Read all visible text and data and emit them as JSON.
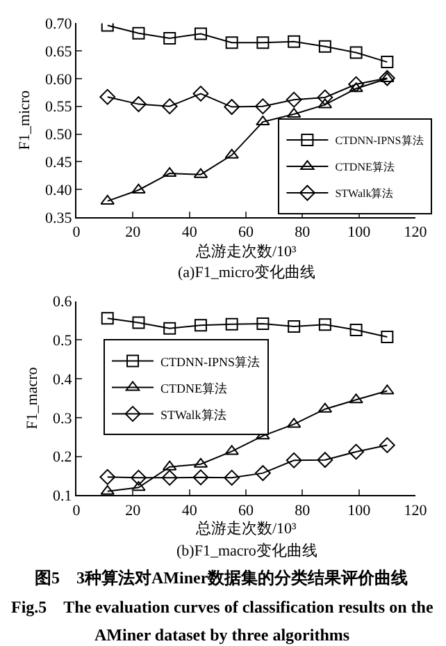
{
  "chart_data": [
    {
      "type": "line",
      "xlabel": "总游走次数/10³",
      "ylabel": "F1_micro",
      "x": [
        11,
        22,
        33,
        44,
        55,
        66,
        77,
        88,
        99,
        110
      ],
      "xlim": [
        0,
        120
      ],
      "xticks": [
        0,
        20,
        40,
        60,
        80,
        100,
        120
      ],
      "ylim": [
        0.35,
        0.7
      ],
      "yticks": [
        0.35,
        {
          "value": 0.4,
          "label": "0.40"
        },
        0.45,
        {
          "value": 0.5,
          "label": "0.50"
        },
        0.55,
        {
          "value": 0.6,
          "label": "0.60"
        },
        0.65,
        {
          "value": 0.7,
          "label": "0.70"
        }
      ],
      "legend": "bottom right",
      "line_style": "solid",
      "annotations": [
        "(a)F1_micro变化曲线"
      ],
      "series": [
        {
          "name": "CTDNN-IPNS算法",
          "color": "#000000",
          "marker": "square",
          "values": [
            0.696,
            0.682,
            0.673,
            0.681,
            0.665,
            0.665,
            0.667,
            0.658,
            0.647,
            0.63
          ]
        },
        {
          "name": "CTDNE算法",
          "color": "#000000",
          "marker": "triangle",
          "values": [
            0.379,
            0.399,
            0.429,
            0.427,
            0.462,
            0.522,
            0.536,
            0.553,
            0.582,
            0.6
          ]
        },
        {
          "name": "STWalk算法",
          "color": "#000000",
          "marker": "diamond",
          "values": [
            0.567,
            0.554,
            0.55,
            0.573,
            0.549,
            0.55,
            0.562,
            0.566,
            0.59,
            0.601
          ]
        }
      ]
    },
    {
      "type": "line",
      "xlabel": "总游走次数/10³",
      "ylabel": "F1_macro",
      "x": [
        11,
        22,
        33,
        44,
        55,
        66,
        77,
        88,
        99,
        110
      ],
      "xlim": [
        0,
        120
      ],
      "xticks": [
        0,
        20,
        40,
        60,
        80,
        100,
        120
      ],
      "ylim": [
        0.1,
        0.6
      ],
      "yticks": [
        0.1,
        0.2,
        0.3,
        0.4,
        0.5,
        0.6
      ],
      "legend": "left",
      "line_style": "solid",
      "annotations": [
        "(b)F1_macro变化曲线",
        "图5　3种算法对AMiner数据集的分类结果评价曲线",
        "Fig.5　The evaluation curves of classification results on the",
        "AMiner dataset by three algorithms"
      ],
      "series": [
        {
          "name": "CTDNN-IPNS算法",
          "color": "#000000",
          "marker": "square",
          "values": [
            0.556,
            0.545,
            0.53,
            0.538,
            0.541,
            0.542,
            0.535,
            0.54,
            0.526,
            0.508
          ]
        },
        {
          "name": "CTDNE算法",
          "color": "#000000",
          "marker": "triangle",
          "values": [
            0.11,
            0.12,
            0.173,
            0.18,
            0.213,
            0.253,
            0.283,
            0.322,
            0.346,
            0.369
          ]
        },
        {
          "name": "STWalk算法",
          "color": "#000000",
          "marker": "diamond",
          "values": [
            0.147,
            0.145,
            0.145,
            0.146,
            0.145,
            0.157,
            0.19,
            0.191,
            0.212,
            0.229
          ]
        }
      ]
    }
  ]
}
